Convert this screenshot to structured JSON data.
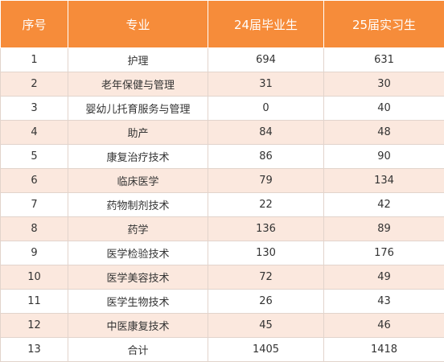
{
  "table": {
    "headers": [
      "序号",
      "专业",
      "24届毕业生",
      "25届实习生"
    ],
    "rows": [
      [
        "1",
        "护理",
        "694",
        "631"
      ],
      [
        "2",
        "老年保健与管理",
        "31",
        "30"
      ],
      [
        "3",
        "婴幼儿托育服务与管理",
        "0",
        "40"
      ],
      [
        "4",
        "助产",
        "84",
        "48"
      ],
      [
        "5",
        "康复治疗技术",
        "86",
        "90"
      ],
      [
        "6",
        "临床医学",
        "79",
        "134"
      ],
      [
        "7",
        "药物制剂技术",
        "22",
        "42"
      ],
      [
        "8",
        "药学",
        "136",
        "89"
      ],
      [
        "9",
        "医学检验技术",
        "130",
        "176"
      ],
      [
        "10",
        "医学美容技术",
        "72",
        "49"
      ],
      [
        "11",
        "医学生物技术",
        "26",
        "43"
      ],
      [
        "12",
        "中医康复技术",
        "45",
        "46"
      ],
      [
        "13",
        "合计",
        "1405",
        "1418"
      ]
    ]
  },
  "colors": {
    "header_bg": "#f68c3a",
    "header_text": "#ffffff",
    "stripe": "#fbe8de"
  }
}
